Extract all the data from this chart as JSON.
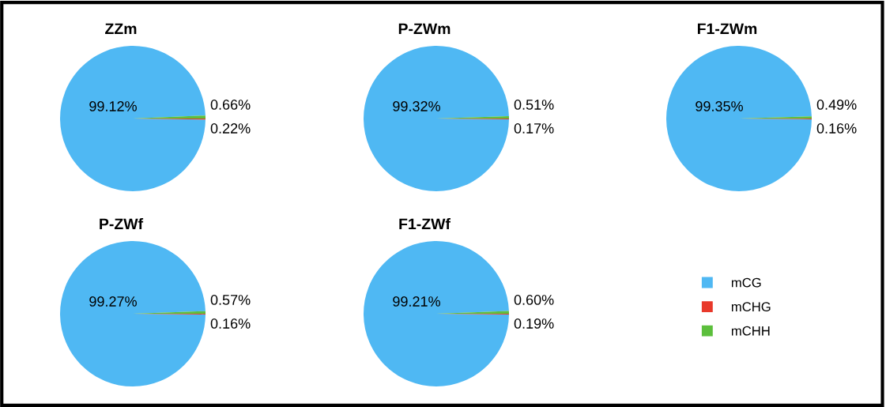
{
  "chart_data": [
    {
      "type": "pie",
      "title": "ZZm",
      "categories": [
        "mCG",
        "mCHG",
        "mCHH"
      ],
      "values": [
        99.12,
        0.22,
        0.66
      ],
      "colors": [
        "#4fb8f3",
        "#e8392b",
        "#5cbf3c"
      ],
      "value_labels": [
        "99.12%",
        "0.22%",
        "0.66%"
      ],
      "legend": "right"
    },
    {
      "type": "pie",
      "title": "P-ZWm",
      "categories": [
        null,
        null,
        null
      ],
      "values": [
        99.32,
        0.17,
        0.51
      ],
      "colors": [
        "#4fb8f3",
        "#e8392b",
        "#5cbf3c"
      ],
      "value_labels": [
        "99.32%",
        "0.17%",
        "0.51%"
      ]
    },
    {
      "type": "pie",
      "title": "F1-ZWm",
      "categories": [
        null,
        null,
        null
      ],
      "values": [
        99.35,
        0.16,
        0.49
      ],
      "colors": [
        "#4fb8f3",
        "#e8392b",
        "#5cbf3c"
      ],
      "value_labels": [
        "99.35%",
        "0.16%",
        "0.49%"
      ]
    },
    {
      "type": "pie",
      "title": "P-ZWf",
      "categories": [
        null,
        null,
        null
      ],
      "values": [
        99.27,
        0.16,
        0.57
      ],
      "colors": [
        "#4fb8f3",
        "#e8392b",
        "#5cbf3c"
      ],
      "value_labels": [
        "99.27%",
        "0.16%",
        "0.57%"
      ]
    },
    {
      "type": "pie",
      "title": "F1-ZWf",
      "categories": [
        null,
        null,
        null
      ],
      "values": [
        99.21,
        0.19,
        0.6
      ],
      "colors": [
        "#4fb8f3",
        "#e8392b",
        "#5cbf3c"
      ],
      "value_labels": [
        "99.21%",
        "0.19%",
        "0.60%"
      ]
    }
  ]
}
